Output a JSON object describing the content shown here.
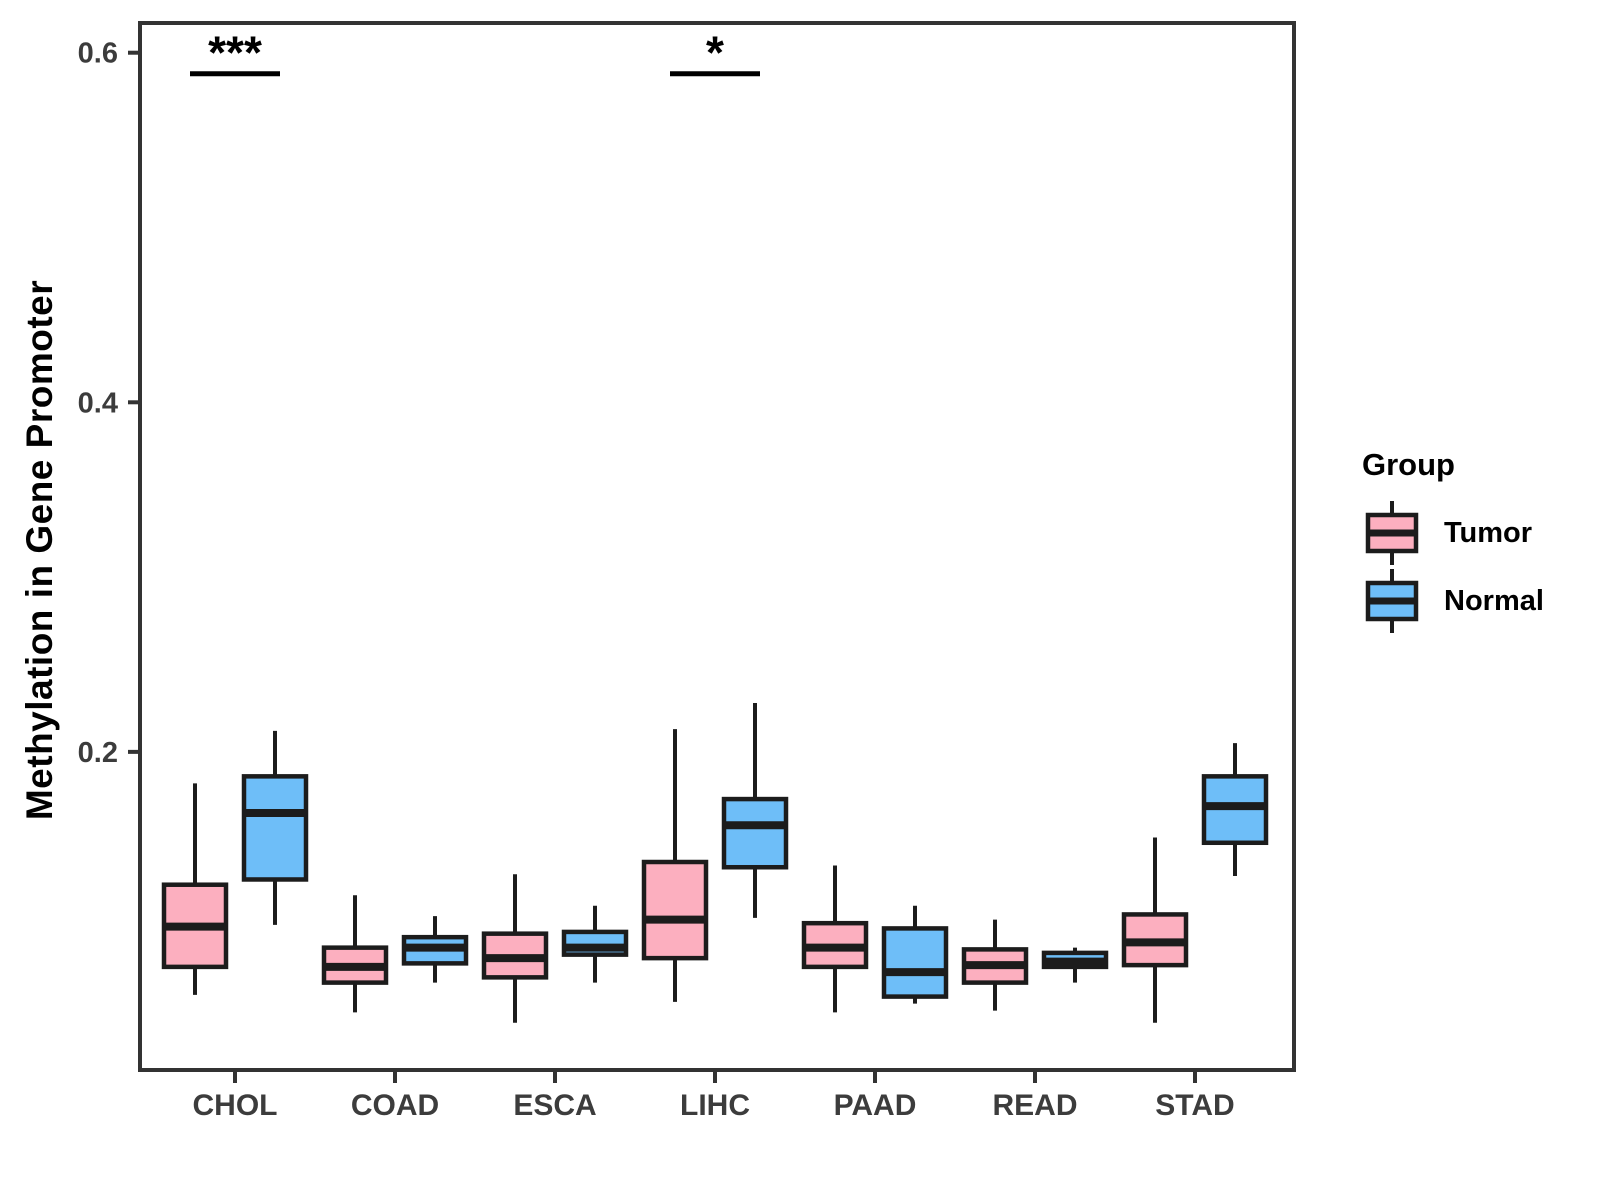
{
  "chart_data": {
    "type": "grouped_boxplot",
    "title": "",
    "ylabel": "Methylation in Gene Promoter",
    "xlabel": "",
    "categories": [
      "CHOL",
      "COAD",
      "ESCA",
      "LIHC",
      "PAAD",
      "READ",
      "STAD"
    ],
    "y_ticks": [
      0.2,
      0.4,
      0.6
    ],
    "y_range": [
      0.018,
      0.617
    ],
    "grid": "off",
    "legend": {
      "title": "Group",
      "position": "right"
    },
    "series": [
      {
        "name": "Tumor",
        "fill": "#FCAFBF",
        "boxes": [
          {
            "category": "CHOL",
            "whisker_low": 0.061,
            "q1": 0.077,
            "median": 0.1,
            "q3": 0.124,
            "whisker_high": 0.182
          },
          {
            "category": "COAD",
            "whisker_low": 0.051,
            "q1": 0.068,
            "median": 0.077,
            "q3": 0.088,
            "whisker_high": 0.118
          },
          {
            "category": "ESCA",
            "whisker_low": 0.045,
            "q1": 0.071,
            "median": 0.082,
            "q3": 0.096,
            "whisker_high": 0.13
          },
          {
            "category": "LIHC",
            "whisker_low": 0.057,
            "q1": 0.082,
            "median": 0.104,
            "q3": 0.137,
            "whisker_high": 0.213
          },
          {
            "category": "PAAD",
            "whisker_low": 0.051,
            "q1": 0.077,
            "median": 0.088,
            "q3": 0.102,
            "whisker_high": 0.135
          },
          {
            "category": "READ",
            "whisker_low": 0.052,
            "q1": 0.068,
            "median": 0.078,
            "q3": 0.087,
            "whisker_high": 0.104
          },
          {
            "category": "STAD",
            "whisker_low": 0.045,
            "q1": 0.078,
            "median": 0.091,
            "q3": 0.107,
            "whisker_high": 0.151
          }
        ]
      },
      {
        "name": "Normal",
        "fill": "#6EBEF8",
        "boxes": [
          {
            "category": "CHOL",
            "whisker_low": 0.101,
            "q1": 0.127,
            "median": 0.165,
            "q3": 0.186,
            "whisker_high": 0.212
          },
          {
            "category": "COAD",
            "whisker_low": 0.068,
            "q1": 0.079,
            "median": 0.088,
            "q3": 0.094,
            "whisker_high": 0.106
          },
          {
            "category": "ESCA",
            "whisker_low": 0.068,
            "q1": 0.084,
            "median": 0.088,
            "q3": 0.097,
            "whisker_high": 0.112
          },
          {
            "category": "LIHC",
            "whisker_low": 0.105,
            "q1": 0.134,
            "median": 0.158,
            "q3": 0.173,
            "whisker_high": 0.228
          },
          {
            "category": "PAAD",
            "whisker_low": 0.056,
            "q1": 0.06,
            "median": 0.074,
            "q3": 0.099,
            "whisker_high": 0.112
          },
          {
            "category": "READ",
            "whisker_low": 0.068,
            "q1": 0.077,
            "median": 0.08,
            "q3": 0.085,
            "whisker_high": 0.088
          },
          {
            "category": "STAD",
            "whisker_low": 0.129,
            "q1": 0.148,
            "median": 0.169,
            "q3": 0.186,
            "whisker_high": 0.205
          }
        ]
      }
    ],
    "significance": [
      {
        "category": "CHOL",
        "label": "***"
      },
      {
        "category": "LIHC",
        "label": "*"
      }
    ],
    "sig_line_value": 0.588,
    "colors": {
      "tumor_fill": "#FCAFBF",
      "normal_fill": "#6EBEF8",
      "box_stroke": "#1C1C1C",
      "panel_border": "#333333",
      "axis_text": "#3C3C3C",
      "tick_mark": "#333333",
      "annotation": "#000000"
    }
  }
}
